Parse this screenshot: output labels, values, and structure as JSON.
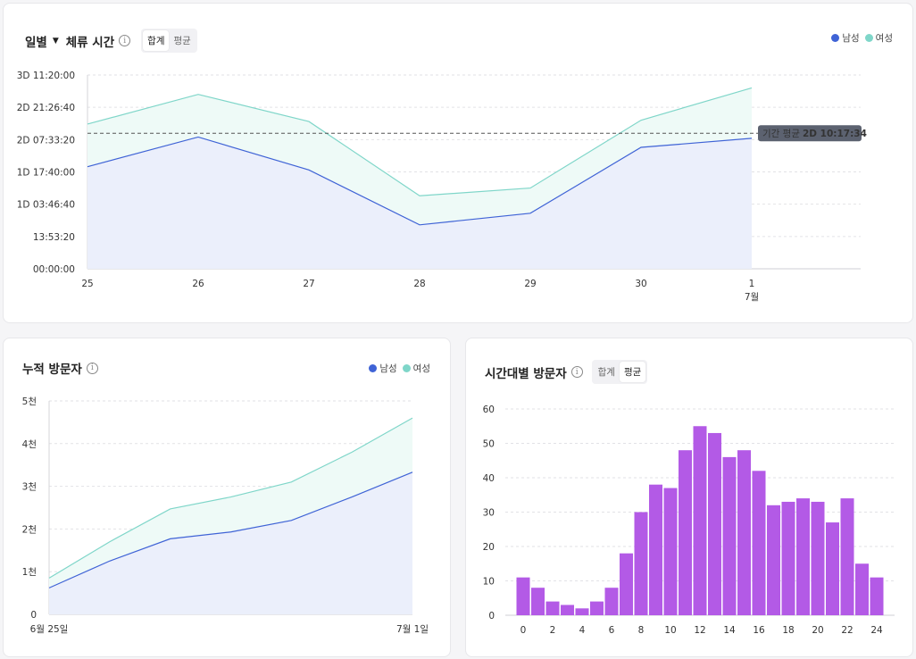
{
  "colors": {
    "male": "#3f63d6",
    "female": "#7fd6c9",
    "bar": "#b35ae6",
    "weekend_sat": "#3f63d6",
    "weekend_sun": "#e0483e"
  },
  "card1": {
    "title_prefix": "일별",
    "title": "체류 시간",
    "info_icon": "i",
    "toggle": [
      "합계",
      "평균"
    ],
    "toggle_active": 0,
    "legend": [
      "남성",
      "여성"
    ]
  },
  "card2": {
    "title": "누적 방문자",
    "info_icon": "i",
    "legend": [
      "남성",
      "여성"
    ]
  },
  "card3": {
    "title": "시간대별 방문자",
    "info_icon": "i",
    "toggle": [
      "합계",
      "평균"
    ],
    "toggle_active": 1
  },
  "chart_data": [
    {
      "type": "area",
      "x": [
        "25",
        "26",
        "27",
        "28",
        "29",
        "30",
        "1"
      ],
      "x_sublabel": {
        "6": "7월"
      },
      "x_label_colors": {
        "3": "weekend_sat",
        "4": "weekend_sun"
      },
      "y_ticks": [
        0,
        50000,
        100000,
        150000,
        200000,
        250000,
        300000
      ],
      "y_tick_labels": [
        "00:00:00",
        "13:53:20",
        "1D 03:46:40",
        "1D 17:40:00",
        "2D 07:33:20",
        "2D 21:26:40",
        "3D 11:20:00"
      ],
      "ylim": [
        0,
        300000
      ],
      "series": [
        {
          "name": "남성",
          "values": [
            158000,
            204000,
            153000,
            68000,
            86000,
            188000,
            202000
          ]
        },
        {
          "name": "여성",
          "values": [
            224000,
            270000,
            228000,
            113000,
            125000,
            230000,
            280000
          ]
        }
      ],
      "reference_line": {
        "value": 209854,
        "label_prefix": "기간 평균",
        "label_value": "2D 10:17:34"
      }
    },
    {
      "type": "area",
      "x_label_start": "6월 25일",
      "x_label_end": "7월 1일",
      "x_count": 7,
      "y_ticks": [
        0,
        1000,
        2000,
        3000,
        4000,
        5000
      ],
      "y_tick_labels": [
        "0",
        "1천",
        "2천",
        "3천",
        "4천",
        "5천"
      ],
      "ylim": [
        0,
        5000
      ],
      "series": [
        {
          "name": "남성",
          "values": [
            620,
            1250,
            1770,
            1930,
            2200,
            2750,
            3330
          ]
        },
        {
          "name": "여성",
          "values": [
            850,
            1700,
            2470,
            2750,
            3100,
            3800,
            4600
          ]
        }
      ]
    },
    {
      "type": "bar",
      "categories": [
        0,
        1,
        2,
        3,
        4,
        5,
        6,
        7,
        8,
        9,
        10,
        11,
        12,
        13,
        14,
        15,
        16,
        17,
        18,
        19,
        20,
        21,
        22,
        23,
        24
      ],
      "values": [
        11,
        8,
        4,
        3,
        2,
        4,
        8,
        18,
        30,
        38,
        37,
        48,
        55,
        53,
        46,
        48,
        42,
        32,
        33,
        34,
        33,
        27,
        34,
        15,
        11
      ],
      "x_tick_labels": [
        "0",
        "2",
        "4",
        "6",
        "8",
        "10",
        "12",
        "14",
        "16",
        "18",
        "20",
        "22",
        "24"
      ],
      "y_ticks": [
        0,
        10,
        20,
        30,
        40,
        50,
        60
      ],
      "ylim": [
        0,
        60
      ]
    }
  ]
}
